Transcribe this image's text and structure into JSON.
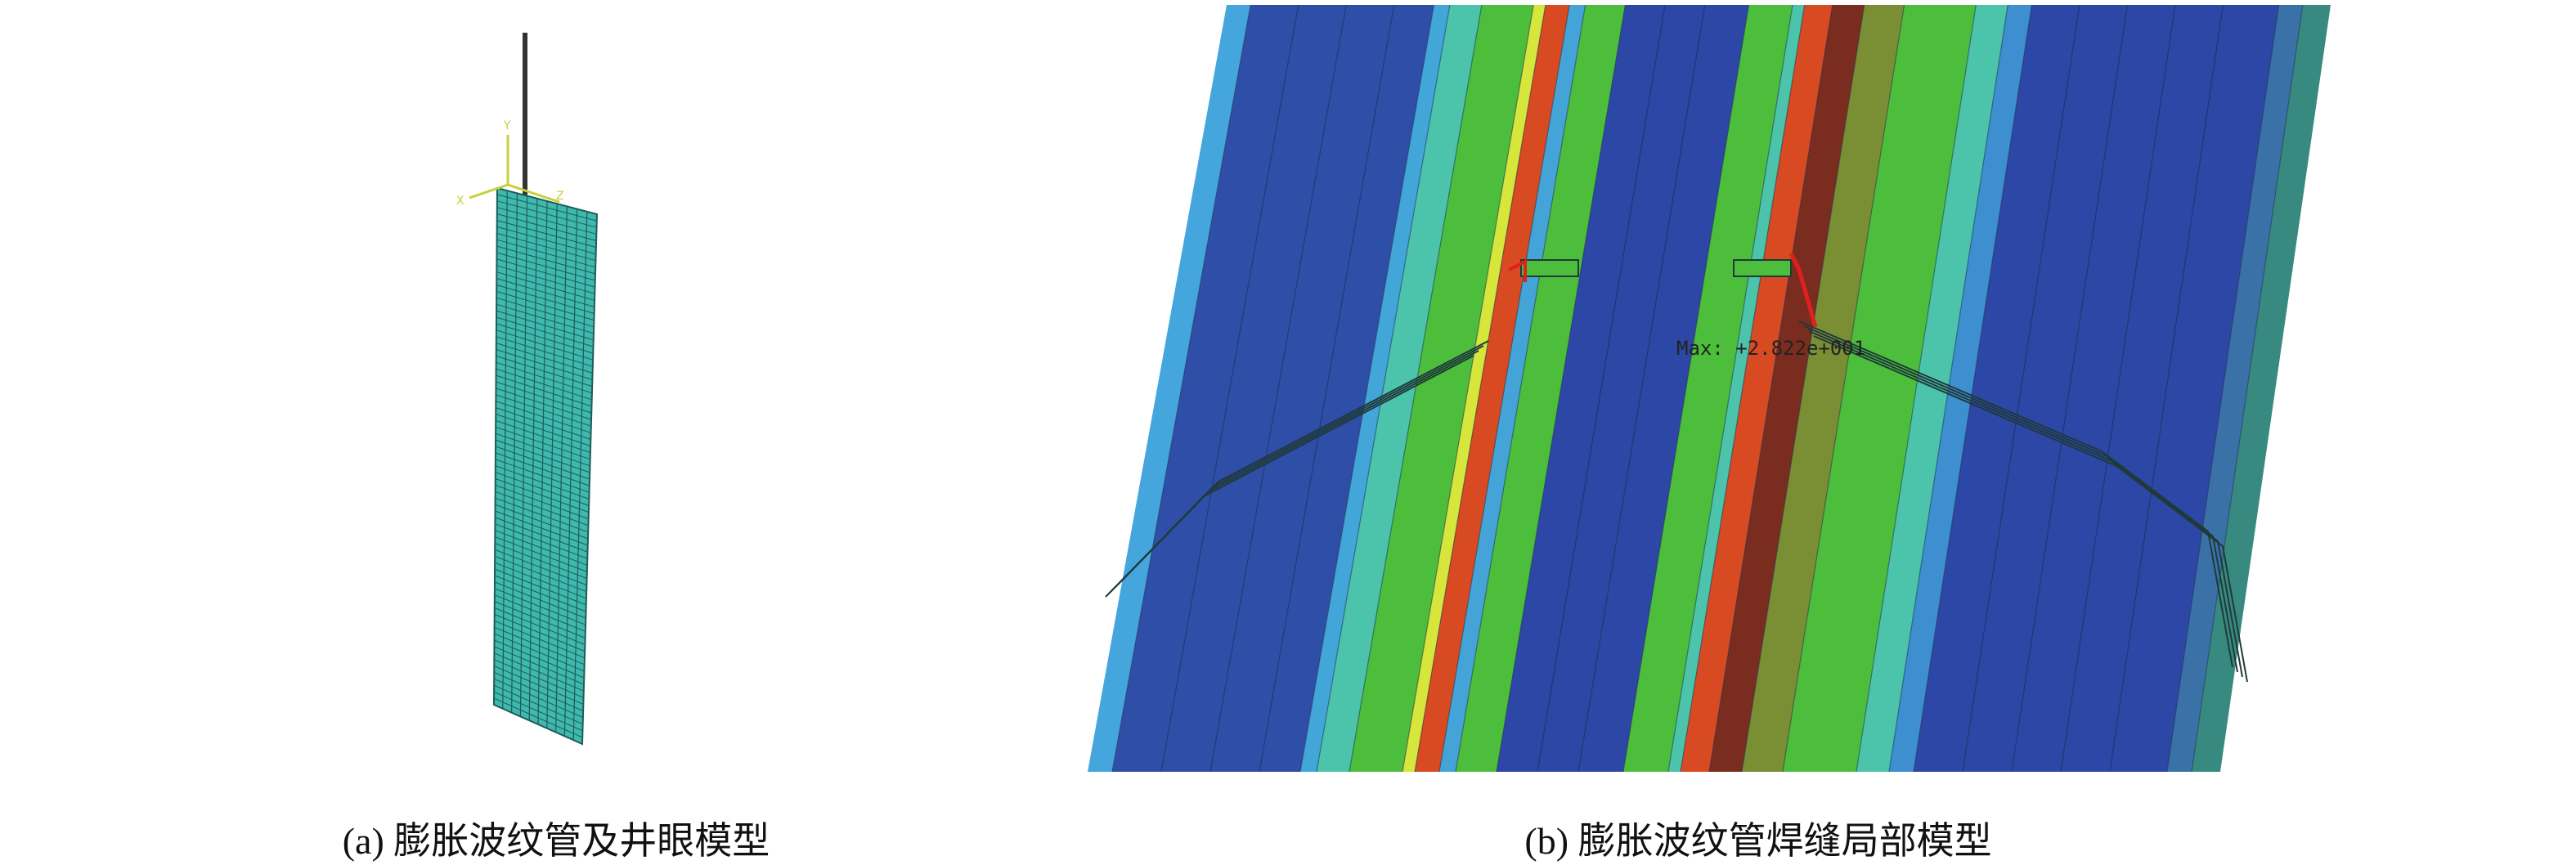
{
  "panel_a": {
    "caption": "(a) 膨胀波纹管及井眼模型",
    "triad_labels": {
      "y": "Y",
      "x": "X",
      "z": "Z"
    },
    "mesh_color": "#3fb8ad",
    "triad_color": "#c8cf3c"
  },
  "panel_b": {
    "caption": "(b) 膨胀波纹管焊缝局部模型",
    "max_label": "Max: +2.822e+001"
  }
}
